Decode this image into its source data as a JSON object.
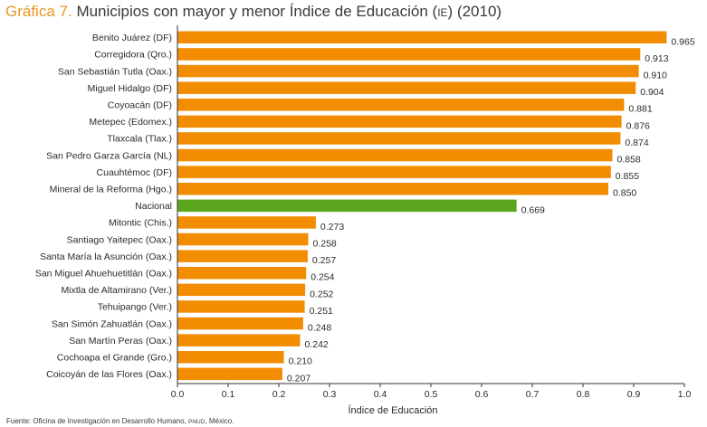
{
  "header": {
    "lead": "Gráfica 7.",
    "title_main": "Municipios con mayor y menor Índice de Educación (",
    "title_abbr": "IE",
    "title_tail": ") (2010)"
  },
  "footer": {
    "source_main": "Fuente: Oficina de Investigación en Desarrollo Humano, ",
    "source_abbr": "PNUD",
    "source_tail": ", México."
  },
  "colors": {
    "default": "#f28c00",
    "highlight": "#5aa61e"
  },
  "chart_data": {
    "type": "bar",
    "orientation": "horizontal",
    "xlabel": "Índice de Educación",
    "xlim": [
      0,
      1.0
    ],
    "xticks": [
      "0.0",
      "0.1",
      "0.2",
      "0.3",
      "0.4",
      "0.5",
      "0.6",
      "0.7",
      "0.8",
      "0.9",
      "1.0"
    ],
    "grid": false,
    "categories": [
      "Benito Juárez (DF)",
      "Corregidora (Qro.)",
      "San Sebastián Tutla (Oax.)",
      "Miguel Hidalgo (DF)",
      "Coyoacán (DF)",
      "Metepec (Edomex.)",
      "Tlaxcala (Tlax.)",
      "San Pedro Garza García (NL)",
      "Cuauhtémoc (DF)",
      "Mineral de la Reforma (Hgo.)",
      "Nacional",
      "Mitontic (Chis.)",
      "Santiago Yaitepec (Oax.)",
      "Santa María la Asunción (Oax.)",
      "San Miguel Ahuehuetitlán (Oax.)",
      "Mixtla de Altamirano (Ver.)",
      "Tehuipango (Ver.)",
      "San Simón Zahuatlán (Oax.)",
      "San Martín Peras (Oax.)",
      "Cochoapa el Grande (Gro.)",
      "Coicoyán de las Flores (Oax.)"
    ],
    "values": [
      0.965,
      0.913,
      0.91,
      0.904,
      0.881,
      0.876,
      0.874,
      0.858,
      0.855,
      0.85,
      0.669,
      0.273,
      0.258,
      0.257,
      0.254,
      0.252,
      0.251,
      0.248,
      0.242,
      0.21,
      0.207
    ],
    "value_labels": [
      "0.965",
      "0.913",
      "0.910",
      "0.904",
      "0.881",
      "0.876",
      "0.874",
      "0.858",
      "0.855",
      "0.850",
      "0.669",
      "0.273",
      "0.258",
      "0.257",
      "0.254",
      "0.252",
      "0.251",
      "0.248",
      "0.242",
      "0.210",
      "0.207"
    ],
    "highlight_category": "Nacional"
  }
}
